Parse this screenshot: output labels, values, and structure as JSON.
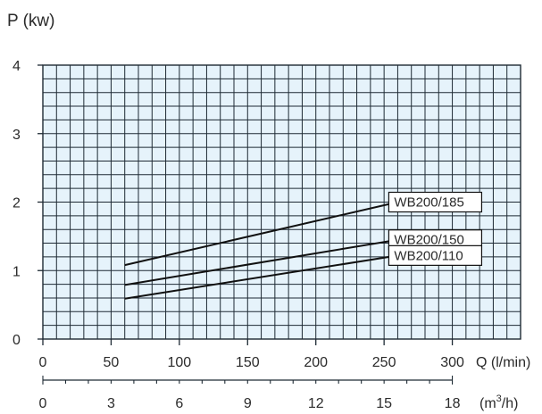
{
  "chart_data": {
    "type": "line",
    "ylabel": "P (kw)",
    "xlabel_primary": "Q (l/min)",
    "xlabel_secondary_prefix": "(m",
    "xlabel_secondary_sup": "3",
    "xlabel_secondary_suffix": "/h)",
    "xlim": [
      0,
      350
    ],
    "ylim": [
      0,
      4
    ],
    "x_ticks": [
      "0",
      "50",
      "100",
      "150",
      "200",
      "250",
      "300"
    ],
    "x_tick_values": [
      0,
      50,
      100,
      150,
      200,
      250,
      300
    ],
    "x2_ticks": [
      "0",
      "3",
      "6",
      "9",
      "12",
      "15",
      "18"
    ],
    "x2_tick_values": [
      0,
      3,
      6,
      9,
      12,
      15,
      18
    ],
    "y_ticks": [
      "0",
      "1",
      "2",
      "3",
      "4"
    ],
    "y_tick_values": [
      0,
      1,
      2,
      3,
      4
    ],
    "grid": true,
    "series": [
      {
        "name": "WB200/185",
        "x": [
          60,
          260
        ],
        "y": [
          1.08,
          2.0
        ]
      },
      {
        "name": "WB200/150",
        "x": [
          60,
          260
        ],
        "y": [
          0.79,
          1.45
        ]
      },
      {
        "name": "WB200/110",
        "x": [
          60,
          260
        ],
        "y": [
          0.59,
          1.22
        ]
      }
    ]
  },
  "colors": {
    "plot_background": "#e6f3fb",
    "grid": "#1e2a34",
    "line": "#111111"
  }
}
